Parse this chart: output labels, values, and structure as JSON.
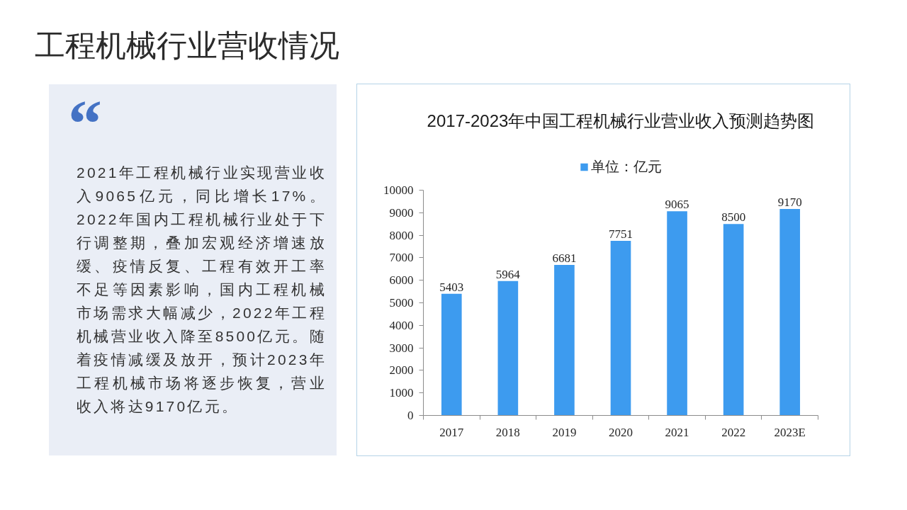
{
  "chart_data": [
    {
      "type": "other",
      "title": "工程机械行业营收情况",
      "annotations": [
        "“",
        "2021年工程机械行业实现营业收入9065亿元，同比增长17%。2022年国内工程机械行业处于下行调整期，叠加宏观经济增速放缓、疫情反复、工程有效开工率不足等因素影响，国内工程机械市场需求大幅减少，2022年工程机械营业收入降至8500亿元。随着疫情减缓及放开，预计2023年工程机械市场将逐步恢复，营业收入将达9170亿元。"
      ]
    },
    {
      "type": "bar",
      "title": "2017-2023年中国工程机械行业营业收入预测趋势图",
      "categories": [
        "2017",
        "2018",
        "2019",
        "2020",
        "2021",
        "2022",
        "2023E"
      ],
      "series": [
        {
          "name": "单位：亿元",
          "color": "#3d9bef",
          "values": [
            5403,
            5964,
            6681,
            7751,
            9065,
            8500,
            9170
          ]
        }
      ],
      "ylim": [
        0,
        10000
      ],
      "yticks": [
        0,
        1000,
        2000,
        3000,
        4000,
        5000,
        6000,
        7000,
        8000,
        9000,
        10000
      ],
      "data_labels": true,
      "legend": "top",
      "grid": false
    }
  ]
}
